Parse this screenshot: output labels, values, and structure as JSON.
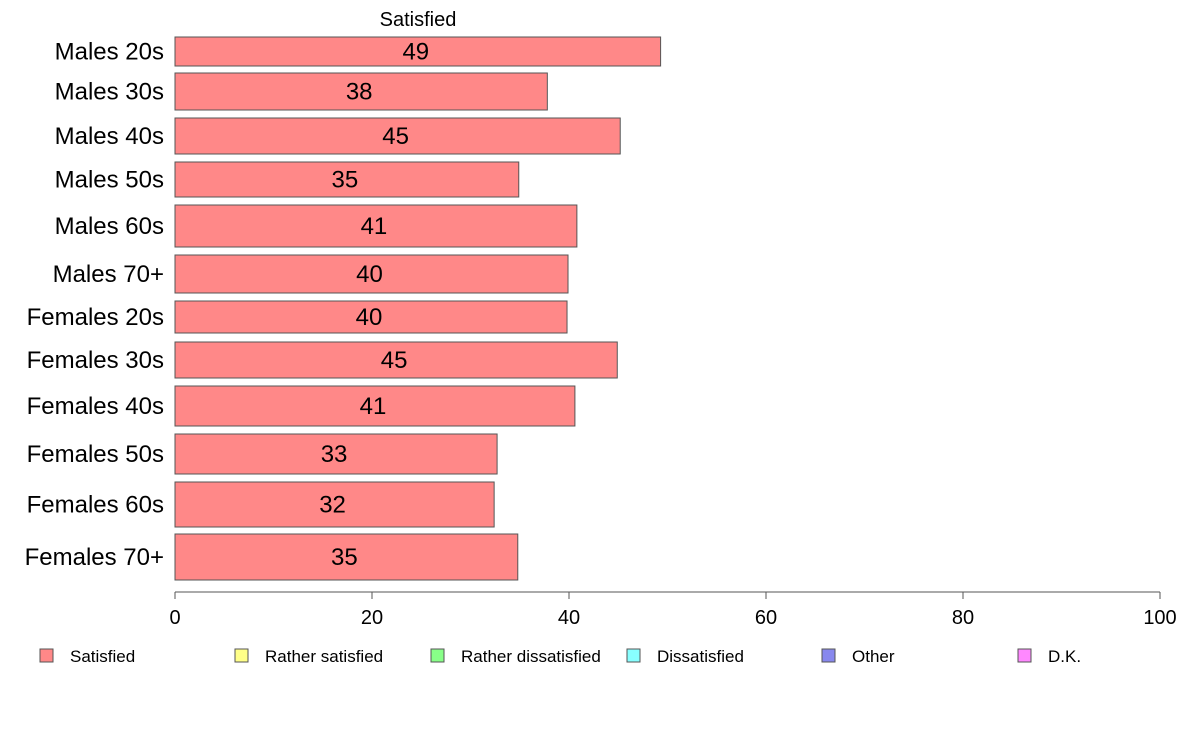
{
  "chart_data": {
    "type": "bar",
    "orientation": "horizontal",
    "title": "Satisfied",
    "xlabel": "",
    "ylabel": "",
    "xlim": [
      0,
      100
    ],
    "xticks": [
      0,
      20,
      40,
      60,
      80,
      100
    ],
    "grid": false,
    "legend_position": "bottom",
    "categories": [
      "Males 20s",
      "Males 30s",
      "Males 40s",
      "Males 50s",
      "Males 60s",
      "Males 70+",
      "Females 20s",
      "Females 30s",
      "Females 40s",
      "Females 50s",
      "Females 60s",
      "Females 70+"
    ],
    "series": [
      {
        "name": "Satisfied",
        "color": "#ff8888",
        "values": [
          49.3,
          37.8,
          45.2,
          34.9,
          40.8,
          39.9,
          39.8,
          44.9,
          40.6,
          32.7,
          32.4,
          34.8
        ],
        "labels": [
          "49",
          "38",
          "45",
          "35",
          "41",
          "40",
          "40",
          "45",
          "41",
          "33",
          "32",
          "35"
        ]
      }
    ],
    "legend": [
      {
        "name": "Satisfied",
        "color": "#ff8888"
      },
      {
        "name": "Rather satisfied",
        "color": "#ffff88"
      },
      {
        "name": "Rather dissatisfied",
        "color": "#88ff88"
      },
      {
        "name": "Dissatisfied",
        "color": "#88ffff"
      },
      {
        "name": "Other",
        "color": "#8888ee"
      },
      {
        "name": "D.K.",
        "color": "#ff88ff"
      }
    ]
  }
}
